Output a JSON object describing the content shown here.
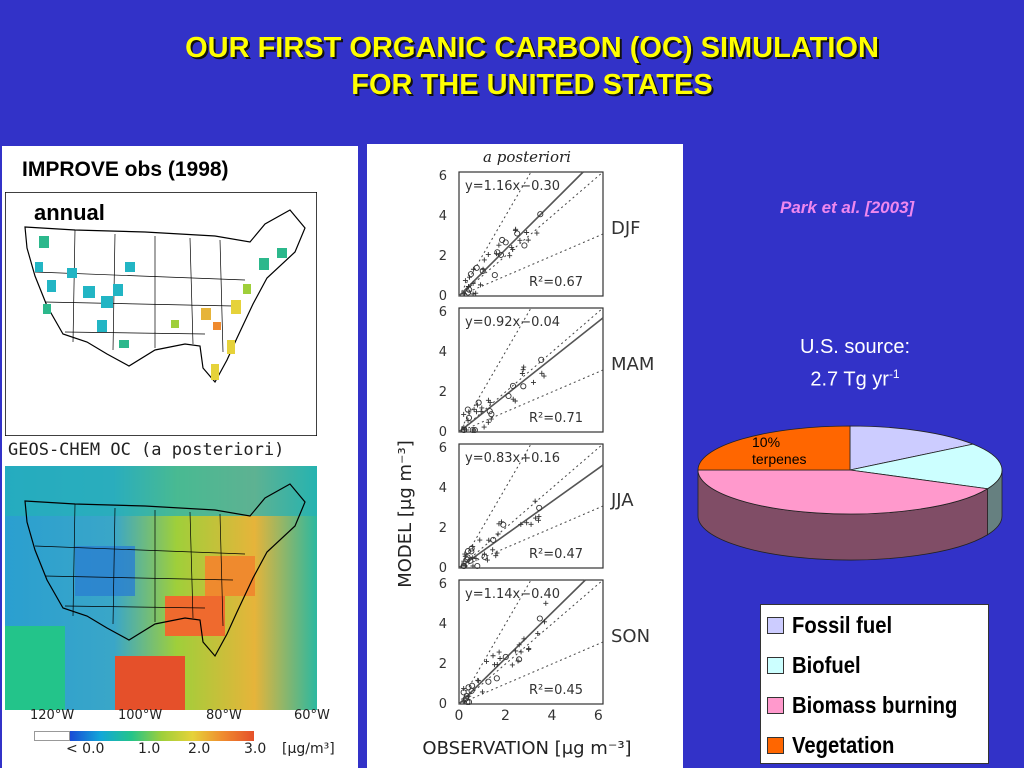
{
  "title": {
    "line1": "OUR FIRST ORGANIC CARBON (OC) SIMULATION",
    "line2": "FOR THE UNITED STATES"
  },
  "left": {
    "obs_heading": "IMPROVE obs (1998)",
    "annual_label": "annual",
    "sim_heading": "GEOS-CHEM OC (a posteriori)",
    "longitudes": [
      "120°W",
      "100°W",
      "80°W",
      "60°W"
    ],
    "colorbar": {
      "labels": [
        "< 0.0",
        "1.0",
        "2.0",
        "3.0"
      ],
      "unit": "[μg/m³]"
    }
  },
  "scatter": {
    "title": "a posteriori",
    "ylabel": "MODEL [μg m⁻³]",
    "xlabel": "OBSERVATION [μg m⁻³]",
    "x_ticks": [
      "0",
      "2",
      "4",
      "6"
    ],
    "y_ticks": [
      "0",
      "2",
      "4",
      "6"
    ],
    "panels": [
      {
        "season": "DJF",
        "equation": "y=1.16x−0.30",
        "r2": "R²=0.67"
      },
      {
        "season": "MAM",
        "equation": "y=0.92x−0.04",
        "r2": "R²=0.71"
      },
      {
        "season": "JJA",
        "equation": "y=0.83x+0.16",
        "r2": "R²=0.47"
      },
      {
        "season": "SON",
        "equation": "y=1.14x−0.40",
        "r2": "R²=0.45"
      }
    ]
  },
  "citation": "Park et al. [2003]",
  "source": {
    "line1": "U.S. source:",
    "line2": "2.7 Tg yr",
    "exp": "-1"
  },
  "pie": {
    "label_pct": "10%",
    "label_name": "terpenes",
    "slices": [
      {
        "name": "Fossil fuel",
        "fraction": 0.15,
        "color": "#ccccff"
      },
      {
        "name": "Biofuel",
        "fraction": 0.17,
        "color": "#ccffff"
      },
      {
        "name": "Biomass burning",
        "fraction": 0.43,
        "color": "#ff99cc"
      },
      {
        "name": "Vegetation",
        "fraction": 0.25,
        "color": "#ff6600"
      }
    ]
  },
  "legend": [
    {
      "label": "Fossil fuel",
      "color": "#ccccff"
    },
    {
      "label": "Biofuel",
      "color": "#ccffff"
    },
    {
      "label": "Biomass burning",
      "color": "#ff99cc"
    },
    {
      "label": "Vegetation",
      "color": "#ff6600"
    }
  ]
}
